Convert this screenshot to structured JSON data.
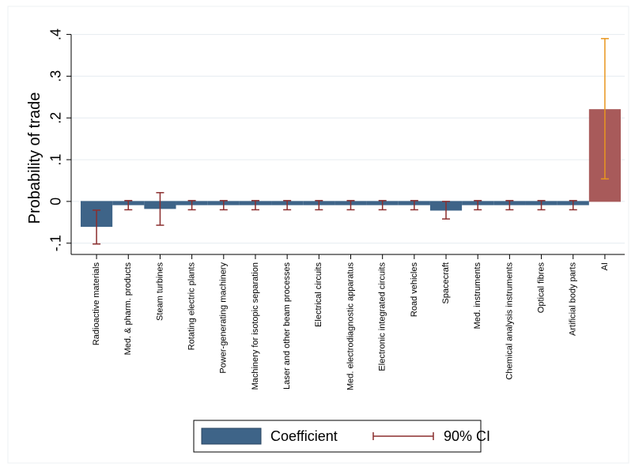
{
  "chart_data": {
    "type": "bar",
    "ylabel": "Probability of trade",
    "categories": [
      "Radioactive materials",
      "Med. & pharm. products",
      "Steam turbines",
      "Rotating electric plants",
      "Power-generating machinery",
      "Machinery for isotopic separation",
      "Laser and other beam processes",
      "Electrical circuits",
      "Med. electrodiagnostic apparatus",
      "Electronic integrated circuits",
      "Road vehicles",
      "Spacecraft",
      "Med. instruments",
      "Chemical analysis instruments",
      "Optical fibres",
      "Artificial body parts",
      "AI"
    ],
    "series": [
      {
        "name": "Coefficient",
        "color": "#3e6488",
        "colors": [
          "#3e6488",
          "#3e6488",
          "#3e6488",
          "#3e6488",
          "#3e6488",
          "#3e6488",
          "#3e6488",
          "#3e6488",
          "#3e6488",
          "#3e6488",
          "#3e6488",
          "#3e6488",
          "#3e6488",
          "#3e6488",
          "#3e6488",
          "#3e6488",
          "#a85a5a"
        ],
        "values": [
          -0.06,
          -0.008,
          -0.017,
          -0.008,
          -0.008,
          -0.008,
          -0.008,
          -0.008,
          -0.008,
          -0.008,
          -0.008,
          -0.021,
          -0.008,
          -0.008,
          -0.008,
          -0.008,
          0.22
        ]
      }
    ],
    "ci": {
      "name": "90% CI",
      "color": "#8b2e2e",
      "colors": [
        "#8b2e2e",
        "#8b2e2e",
        "#8b2e2e",
        "#8b2e2e",
        "#8b2e2e",
        "#8b2e2e",
        "#8b2e2e",
        "#8b2e2e",
        "#8b2e2e",
        "#8b2e2e",
        "#8b2e2e",
        "#8b2e2e",
        "#8b2e2e",
        "#8b2e2e",
        "#8b2e2e",
        "#8b2e2e",
        "#e8961e"
      ],
      "low": [
        -0.102,
        -0.02,
        -0.057,
        -0.02,
        -0.02,
        -0.02,
        -0.02,
        -0.02,
        -0.02,
        -0.02,
        -0.02,
        -0.042,
        -0.02,
        -0.02,
        -0.02,
        -0.02,
        0.054
      ],
      "high": [
        -0.021,
        0.002,
        0.021,
        0.002,
        0.002,
        0.002,
        0.002,
        0.002,
        0.002,
        0.002,
        0.002,
        0,
        0.002,
        0.002,
        0.002,
        0.002,
        0.39
      ]
    },
    "ylim": [
      -0.127,
      0.42
    ],
    "yticks": [
      {
        "value": -0.1,
        "label": "-.1"
      },
      0,
      {
        "value": 0.1,
        "label": ".1"
      },
      {
        "value": 0.2,
        "label": ".2"
      },
      {
        "value": 0.3,
        "label": ".3"
      },
      {
        "value": 0.4,
        "label": ".4"
      }
    ],
    "grid": true
  }
}
